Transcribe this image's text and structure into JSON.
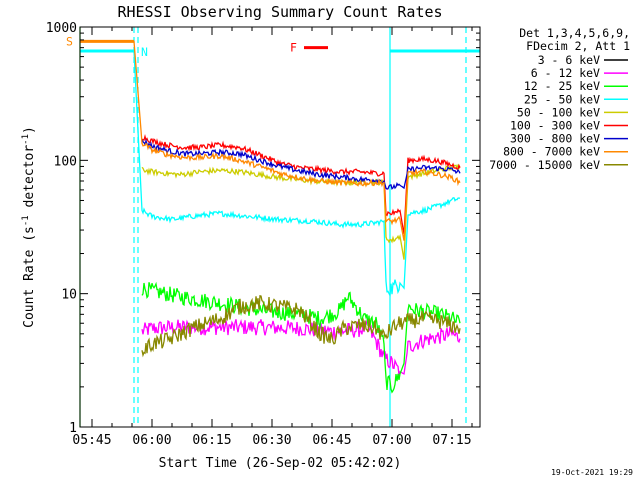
{
  "chart_data": {
    "type": "line",
    "title": "RHESSI Observing Summary Count Rates",
    "xlabel": "Start Time (26-Sep-02 05:42:02)",
    "ylabel_main": "Count Rate (s",
    "ylabel_sup1": "-1",
    "ylabel_mid": " detector",
    "ylabel_sup2": "-1",
    "ylabel_end": ")",
    "y_scale": "log",
    "ylim": [
      1,
      1000
    ],
    "xlim_minutes_after_0542": [
      0,
      100
    ],
    "x_ticks": [
      {
        "label": "05:45",
        "minutes": 3
      },
      {
        "label": "06:00",
        "minutes": 18
      },
      {
        "label": "06:15",
        "minutes": 33
      },
      {
        "label": "06:30",
        "minutes": 48
      },
      {
        "label": "06:45",
        "minutes": 63
      },
      {
        "label": "07:00",
        "minutes": 78
      },
      {
        "label": "07:15",
        "minutes": 93
      }
    ],
    "y_ticks": [
      {
        "label": "1",
        "value": 1
      },
      {
        "label": "10",
        "value": 10
      },
      {
        "label": "100",
        "value": 100
      },
      {
        "label": "1000",
        "value": 1000
      }
    ],
    "legend_header": [
      "Det 1,3,4,5,6,9,",
      "FDecim 2, Att 1"
    ],
    "legend_placement": "right",
    "timestamp": "19-Oct-2021 19:29",
    "grid": false,
    "series": [
      {
        "name": "3 - 6 keV",
        "color": "#000000",
        "points": []
      },
      {
        "name": "6 - 12 keV",
        "color": "#ff00ff",
        "points": [
          [
            15.5,
            5.2
          ],
          [
            18,
            5.5
          ],
          [
            25,
            5.6
          ],
          [
            35,
            5.6
          ],
          [
            45,
            5.6
          ],
          [
            55,
            5.5
          ],
          [
            63,
            5.2
          ],
          [
            68,
            5.3
          ],
          [
            72,
            5.5
          ],
          [
            74,
            4.4
          ],
          [
            76,
            3.3
          ],
          [
            78,
            3.0
          ],
          [
            80,
            2.6
          ],
          [
            81,
            2.5
          ],
          [
            82,
            4.0
          ],
          [
            86,
            4.5
          ],
          [
            93,
            5.0
          ],
          [
            95,
            4.6
          ]
        ]
      },
      {
        "name": "12 - 25 keV",
        "color": "#00ff00",
        "points": [
          [
            15.5,
            11
          ],
          [
            18,
            10.5
          ],
          [
            25,
            9.5
          ],
          [
            35,
            8.5
          ],
          [
            45,
            7.5
          ],
          [
            55,
            7.0
          ],
          [
            60,
            6.5
          ],
          [
            63,
            7.0
          ],
          [
            65,
            7.5
          ],
          [
            67,
            9.5
          ],
          [
            69,
            8.0
          ],
          [
            71,
            6.5
          ],
          [
            74,
            6.0
          ],
          [
            76,
            4.2
          ],
          [
            76.5,
            2.2
          ],
          [
            78,
            2.0
          ],
          [
            80,
            2.5
          ],
          [
            81,
            3.0
          ],
          [
            82,
            8.0
          ],
          [
            84,
            7.5
          ],
          [
            90,
            7.0
          ],
          [
            93,
            6.5
          ],
          [
            95,
            6.0
          ]
        ]
      },
      {
        "name": "25 - 50 keV",
        "color": "#00ffff",
        "points": [
          [
            0,
            660
          ],
          [
            13.5,
            660
          ],
          [
            15.5,
            42
          ],
          [
            18,
            38
          ],
          [
            23,
            36
          ],
          [
            28,
            38
          ],
          [
            35,
            40
          ],
          [
            42,
            38
          ],
          [
            50,
            36
          ],
          [
            58,
            35
          ],
          [
            65,
            33
          ],
          [
            70,
            33
          ],
          [
            74,
            34
          ],
          [
            76,
            35
          ],
          [
            76.5,
            11
          ],
          [
            78,
            11
          ],
          [
            80,
            12
          ],
          [
            81,
            11
          ],
          [
            82,
            40
          ],
          [
            86,
            42
          ],
          [
            90,
            46
          ],
          [
            93,
            50
          ],
          [
            95,
            52
          ]
        ]
      },
      {
        "name": "50 - 100 keV",
        "color": "#cccc00",
        "points": [
          [
            15.5,
            85
          ],
          [
            18,
            82
          ],
          [
            25,
            78
          ],
          [
            30,
            82
          ],
          [
            35,
            84
          ],
          [
            40,
            82
          ],
          [
            45,
            78
          ],
          [
            50,
            74
          ],
          [
            58,
            70
          ],
          [
            65,
            68
          ],
          [
            70,
            68
          ],
          [
            74,
            69
          ],
          [
            76,
            68
          ],
          [
            76.5,
            26
          ],
          [
            78,
            25
          ],
          [
            80,
            27
          ],
          [
            81,
            18
          ],
          [
            82,
            75
          ],
          [
            86,
            80
          ],
          [
            90,
            85
          ],
          [
            93,
            88
          ],
          [
            95,
            90
          ]
        ]
      },
      {
        "name": "100 - 300 keV",
        "color": "#ff0000",
        "points": [
          [
            15.5,
            150
          ],
          [
            18,
            140
          ],
          [
            22,
            130
          ],
          [
            26,
            125
          ],
          [
            30,
            125
          ],
          [
            35,
            130
          ],
          [
            40,
            125
          ],
          [
            45,
            110
          ],
          [
            50,
            95
          ],
          [
            55,
            88
          ],
          [
            60,
            85
          ],
          [
            65,
            82
          ],
          [
            70,
            82
          ],
          [
            74,
            80
          ],
          [
            76,
            80
          ],
          [
            76.5,
            40
          ],
          [
            78,
            40
          ],
          [
            80,
            42
          ],
          [
            81,
            28
          ],
          [
            82,
            100
          ],
          [
            86,
            102
          ],
          [
            90,
            98
          ],
          [
            93,
            92
          ],
          [
            95,
            88
          ]
        ]
      },
      {
        "name": "300 - 800 keV",
        "color": "#0000cc",
        "points": [
          [
            15.5,
            140
          ],
          [
            18,
            128
          ],
          [
            22,
            118
          ],
          [
            26,
            112
          ],
          [
            30,
            112
          ],
          [
            35,
            115
          ],
          [
            40,
            112
          ],
          [
            45,
            100
          ],
          [
            50,
            90
          ],
          [
            55,
            83
          ],
          [
            60,
            78
          ],
          [
            65,
            75
          ],
          [
            70,
            72
          ],
          [
            74,
            71
          ],
          [
            76,
            70
          ],
          [
            76.5,
            62
          ],
          [
            78,
            63
          ],
          [
            80,
            65
          ],
          [
            81,
            62
          ],
          [
            82,
            85
          ],
          [
            86,
            88
          ],
          [
            90,
            87
          ],
          [
            93,
            85
          ],
          [
            95,
            80
          ]
        ]
      },
      {
        "name": "800 - 7000 keV",
        "color": "#ff8800",
        "points": [
          [
            0,
            780
          ],
          [
            13.5,
            780
          ],
          [
            15.5,
            135
          ],
          [
            18,
            120
          ],
          [
            22,
            110
          ],
          [
            26,
            105
          ],
          [
            30,
            105
          ],
          [
            35,
            108
          ],
          [
            40,
            100
          ],
          [
            45,
            90
          ],
          [
            50,
            80
          ],
          [
            55,
            74
          ],
          [
            60,
            70
          ],
          [
            65,
            68
          ],
          [
            70,
            67
          ],
          [
            74,
            68
          ],
          [
            76,
            68
          ],
          [
            76.5,
            35
          ],
          [
            78,
            35
          ],
          [
            80,
            36
          ],
          [
            81,
            25
          ],
          [
            82,
            80
          ],
          [
            86,
            82
          ],
          [
            90,
            78
          ],
          [
            93,
            74
          ],
          [
            95,
            68
          ]
        ]
      },
      {
        "name": "7000 - 15000 keV",
        "color": "#888800",
        "points": [
          [
            15.5,
            3.7
          ],
          [
            18,
            4.2
          ],
          [
            22,
            4.5
          ],
          [
            28,
            5.5
          ],
          [
            35,
            6.5
          ],
          [
            40,
            8.0
          ],
          [
            45,
            8.5
          ],
          [
            50,
            8.0
          ],
          [
            55,
            7.5
          ],
          [
            60,
            5.0
          ],
          [
            63,
            4.5
          ],
          [
            66,
            5.5
          ],
          [
            70,
            5.8
          ],
          [
            74,
            5.5
          ],
          [
            76,
            4.7
          ],
          [
            78,
            5.5
          ],
          [
            80,
            6.0
          ],
          [
            82,
            6.2
          ],
          [
            86,
            6.5
          ],
          [
            90,
            6.2
          ],
          [
            95,
            5.5
          ]
        ]
      }
    ],
    "annotations": [
      {
        "text": "S",
        "color": "#ff8800"
      },
      {
        "text": "N",
        "color": "#00ffff"
      },
      {
        "text": "F",
        "color": "#ff0000"
      }
    ],
    "flag_bars": [
      {
        "label": "S",
        "color": "#ff8800",
        "x0": 0,
        "x1": 13.5,
        "value": 780
      },
      {
        "label": "N",
        "color": "#00ffff",
        "x0": 0,
        "x1": 13.5,
        "value": 660
      },
      {
        "label": "N",
        "color": "#00ffff",
        "x0": 77.5,
        "x1": 100,
        "value": 660
      },
      {
        "label": "F",
        "color": "#ff0000",
        "x0": 56,
        "x1": 62,
        "value": 700
      }
    ],
    "vlines": [
      {
        "minutes": 13.5,
        "color": "#00ffff",
        "style": "dashed"
      },
      {
        "minutes": 14.5,
        "color": "#00ffff",
        "style": "dashed"
      },
      {
        "minutes": 0,
        "color": "#00ff00",
        "style": "solid"
      },
      {
        "minutes": 77.5,
        "color": "#00ffff",
        "style": "solid"
      },
      {
        "minutes": 96.5,
        "color": "#00ffff",
        "style": "dashed"
      }
    ]
  }
}
